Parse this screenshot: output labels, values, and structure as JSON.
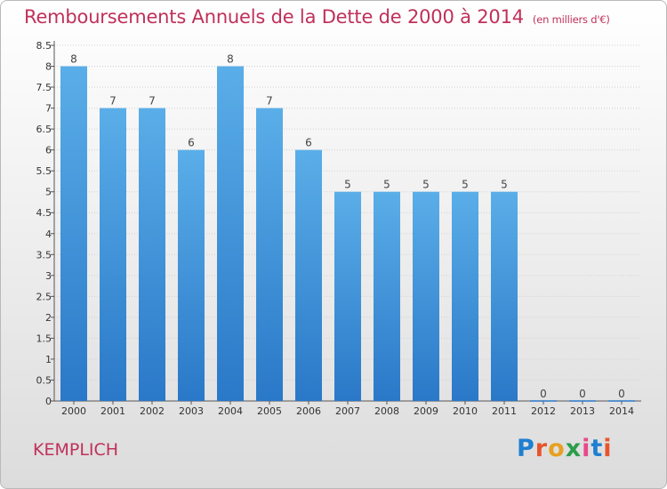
{
  "header": {
    "title": "Remboursements Annuels de la Dette de 2000 à 2014",
    "unit": "(en milliers d'€)"
  },
  "footer": {
    "commune": "KEMPLICH",
    "logo_letters": [
      "P",
      "r",
      "o",
      "x",
      "i",
      "t",
      "i"
    ],
    "logo_colors": [
      "#1f7fd1",
      "#e8542a",
      "#e8a020",
      "#2a9d4a",
      "#e84a8a",
      "#1f7fd1",
      "#e8542a"
    ]
  },
  "colors": {
    "title": "#c0305a",
    "bar_top": "#5aaee8",
    "bar_bottom": "#2a78c8"
  },
  "chart_data": {
    "type": "bar",
    "title": "Remboursements Annuels de la Dette de 2000 à 2014",
    "subtitle": "(en milliers d'€)",
    "categories": [
      "2000",
      "2001",
      "2002",
      "2003",
      "2004",
      "2005",
      "2006",
      "2007",
      "2008",
      "2009",
      "2010",
      "2011",
      "2012",
      "2013",
      "2014"
    ],
    "values": [
      8,
      7,
      7,
      6,
      8,
      7,
      6,
      5,
      5,
      5,
      5,
      5,
      0,
      0,
      0
    ],
    "value_labels": [
      "8",
      "7",
      "7",
      "6",
      "8",
      "7",
      "6",
      "5",
      "5",
      "5",
      "5",
      "5",
      "0",
      "0",
      "0"
    ],
    "yticks": [
      "0",
      "0.5",
      "1",
      "1.5",
      "2",
      "2.5",
      "3",
      "3.5",
      "4",
      "4.5",
      "5",
      "5.5",
      "6",
      "6.5",
      "7",
      "7.5",
      "8",
      "8.5"
    ],
    "ylim": [
      0,
      8.5
    ],
    "grid": true,
    "legend": "none"
  }
}
